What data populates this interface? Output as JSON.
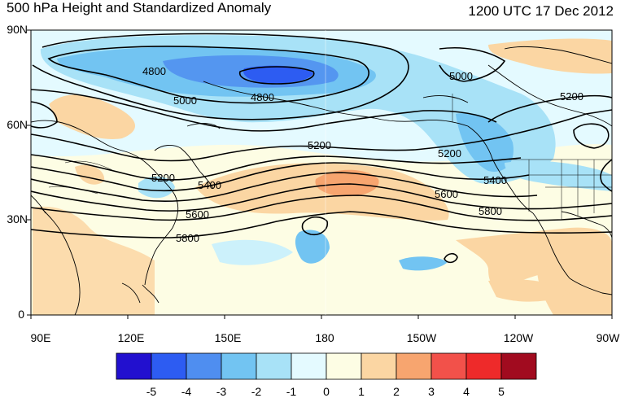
{
  "title": "500 hPa Height and Standardized Anomaly",
  "datetime": "1200 UTC 17 Dec 2012",
  "lat_labels": [
    "90N",
    "60N",
    "30N",
    "0"
  ],
  "lon_labels": [
    "90E",
    "120E",
    "150E",
    "180",
    "150W",
    "120W",
    "90W"
  ],
  "colorbar": {
    "labels": [
      "-5",
      "-4",
      "-3",
      "-2",
      "-1",
      "0",
      "1",
      "2",
      "3",
      "4",
      "5"
    ],
    "colors": [
      "#2210cf",
      "#2d5cf2",
      "#4f8ef0",
      "#72c4f2",
      "#a8e2f7",
      "#e4faff",
      "#fdfde4",
      "#fbd6a3",
      "#f7a56f",
      "#f2514a",
      "#ee2a2a",
      "#a10b1f"
    ]
  },
  "contour_labels": [
    {
      "text": "4800"
    },
    {
      "text": "4800"
    },
    {
      "text": "5000"
    },
    {
      "text": "5000"
    },
    {
      "text": "5200"
    },
    {
      "text": "5200"
    },
    {
      "text": "5200"
    },
    {
      "text": "5200"
    },
    {
      "text": "5400"
    },
    {
      "text": "5400"
    },
    {
      "text": "5600"
    },
    {
      "text": "5600"
    },
    {
      "text": "5800"
    },
    {
      "text": "5800"
    }
  ]
}
